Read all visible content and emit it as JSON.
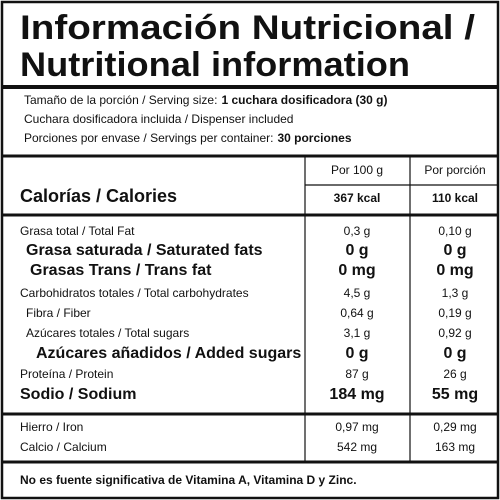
{
  "title": [
    "Información Nutricional /",
    "Nutritional information"
  ],
  "serving": [
    {
      "label": "Tamaño de la porción / Serving size:",
      "value": "1 cuchara dosificadora (30 g)"
    },
    {
      "label": "Cuchara dosificadora incluida / Dispenser included"
    },
    {
      "label": "Porciones por envase / Servings per container:",
      "value": "30 porciones"
    }
  ],
  "columns": [
    "Por 100 g",
    "Por porción"
  ],
  "calories": {
    "label": "Calorías / Calories",
    "values": [
      "367 kcal",
      "110 kcal"
    ]
  },
  "nutrients": [
    {
      "label": "Grasa total / Total Fat",
      "values": [
        "0,3 g",
        "0,10 g"
      ]
    },
    {
      "label": "Grasa saturada / Saturated fats",
      "values": [
        "0 g",
        "0 g"
      ]
    },
    {
      "label": "Grasas Trans / Trans fat",
      "values": [
        "0 mg",
        "0 mg"
      ]
    },
    {
      "label": "Carbohidratos totales / Total carbohydrates",
      "values": [
        "4,5 g",
        "1,3 g"
      ]
    },
    {
      "label": "Fibra / Fiber",
      "values": [
        "0,64 g",
        "0,19 g"
      ]
    },
    {
      "label": "Azúcares totales / Total sugars",
      "values": [
        "3,1 g",
        "0,92 g"
      ]
    },
    {
      "label": "Azúcares añadidos / Added sugars",
      "values": [
        "0 g",
        "0 g"
      ]
    },
    {
      "label": "Proteína / Protein",
      "values": [
        "87 g",
        "26 g"
      ]
    },
    {
      "label": "Sodio / Sodium",
      "values": [
        "184 mg",
        "55 mg"
      ]
    }
  ],
  "minerals": [
    {
      "label": "Hierro / Iron",
      "values": [
        "0,97 mg",
        "0,29 mg"
      ]
    },
    {
      "label": "Calcio / Calcium",
      "values": [
        "542 mg",
        "163 mg"
      ]
    }
  ],
  "footnote": "No es fuente significativa de Vitamina A, Vitamina D y Zinc."
}
